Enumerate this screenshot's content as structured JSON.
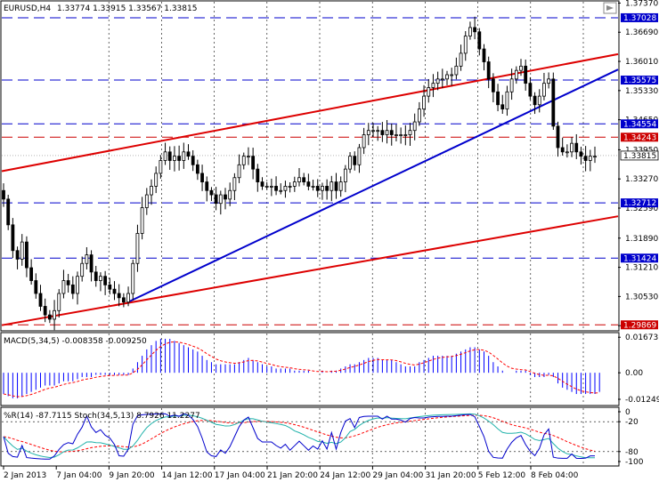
{
  "header": {
    "symbol": "EURUSD,H4",
    "ohlc": "1.33774 1.33915 1.33567 1.33815"
  },
  "colors": {
    "up": "#000000",
    "down": "#000000",
    "grid": "#000000",
    "hline_blue": "#0000cc",
    "hline_red": "#cc0000",
    "trend_red": "#dd0000",
    "trend_blue": "#0000cc",
    "macd_hist": "#0000ff",
    "macd_signal": "#ff0000",
    "wpr": "#0000cc",
    "stoch_main": "#20b2aa",
    "stoch_signal": "#ff0000"
  },
  "chart_data": [
    {
      "type": "candlestick",
      "title": "EURUSD,H4",
      "price_range": [
        1.2975,
        1.374
      ],
      "y_ticks": [
        "1.37370",
        "1.36690",
        "1.36010",
        "1.35330",
        "1.34650",
        "1.33950",
        "1.33270",
        "1.32590",
        "1.31890",
        "1.31210",
        "1.30530",
        "1.29850"
      ],
      "x_ticks": [
        "2 Jan 2013",
        "7 Jan 04:00",
        "9 Jan 20:00",
        "14 Jan 12:00",
        "17 Jan 04:00",
        "21 Jan 20:00",
        "24 Jan 12:00",
        "29 Jan 04:00",
        "31 Jan 20:00",
        "5 Feb 12:00",
        "8 Feb 04:00"
      ],
      "horizontal_levels": [
        {
          "value": 1.37028,
          "label": "1.37028",
          "color": "#0000cc"
        },
        {
          "value": 1.35575,
          "label": "1.35575",
          "color": "#0000cc"
        },
        {
          "value": 1.34554,
          "label": "1.34554",
          "color": "#0000cc"
        },
        {
          "value": 1.34243,
          "label": "1.34243",
          "color": "#cc0000"
        },
        {
          "value": 1.32712,
          "label": "1.32712",
          "color": "#0000cc"
        },
        {
          "value": 1.31424,
          "label": "1.31424",
          "color": "#0000cc"
        },
        {
          "value": 1.29869,
          "label": "1.29869",
          "color": "#cc0000"
        }
      ],
      "current_price": {
        "value": 1.33815,
        "label": "1.33815"
      },
      "trendlines": [
        {
          "color": "#dd0000",
          "from": [
            0,
            1.3345
          ],
          "to": [
            1,
            1.3618
          ]
        },
        {
          "color": "#dd0000",
          "from": [
            0,
            1.2986
          ],
          "to": [
            1,
            1.324
          ]
        },
        {
          "color": "#0000cc",
          "from": [
            0.205,
            1.304
          ],
          "to": [
            1,
            1.3582
          ]
        }
      ],
      "candles_close": [
        1.328,
        1.322,
        1.316,
        1.314,
        1.318,
        1.312,
        1.309,
        1.306,
        1.303,
        1.301,
        1.3,
        1.302,
        1.306,
        1.309,
        1.308,
        1.306,
        1.31,
        1.313,
        1.315,
        1.311,
        1.309,
        1.31,
        1.308,
        1.307,
        1.306,
        1.305,
        1.304,
        1.306,
        1.313,
        1.32,
        1.326,
        1.329,
        1.331,
        1.334,
        1.337,
        1.339,
        1.337,
        1.338,
        1.337,
        1.339,
        1.338,
        1.336,
        1.334,
        1.332,
        1.33,
        1.329,
        1.327,
        1.329,
        1.328,
        1.33,
        1.333,
        1.336,
        1.338,
        1.338,
        1.335,
        1.332,
        1.331,
        1.331,
        1.331,
        1.33,
        1.33,
        1.331,
        1.331,
        1.332,
        1.333,
        1.332,
        1.331,
        1.331,
        1.33,
        1.331,
        1.33,
        1.332,
        1.33,
        1.332,
        1.335,
        1.338,
        1.336,
        1.34,
        1.343,
        1.344,
        1.344,
        1.344,
        1.343,
        1.344,
        1.343,
        1.343,
        1.343,
        1.343,
        1.344,
        1.346,
        1.349,
        1.352,
        1.354,
        1.355,
        1.356,
        1.356,
        1.357,
        1.357,
        1.359,
        1.362,
        1.366,
        1.368,
        1.367,
        1.363,
        1.36,
        1.356,
        1.353,
        1.35,
        1.349,
        1.353,
        1.356,
        1.358,
        1.359,
        1.355,
        1.352,
        1.35,
        1.352,
        1.355,
        1.356,
        1.345,
        1.34,
        1.339,
        1.339,
        1.341,
        1.339,
        1.338,
        1.337,
        1.338,
        1.338
      ],
      "macd": {
        "label": "MACD(5,34,5) -0.008358 -0.009250",
        "y_ticks": [
          "0.016731",
          "0.00",
          "-0.01249"
        ],
        "range": [
          -0.015,
          0.0185
        ],
        "hist": [
          -0.01,
          -0.011,
          -0.012,
          -0.012,
          -0.011,
          -0.01,
          -0.009,
          -0.008,
          -0.007,
          -0.006,
          -0.006,
          -0.006,
          -0.005,
          -0.004,
          -0.004,
          -0.004,
          -0.003,
          -0.002,
          -0.002,
          -0.002,
          -0.001,
          -0.001,
          -0.001,
          -0.001,
          -0.001,
          -0.001,
          -0.001,
          -0.001,
          0.002,
          0.005,
          0.008,
          0.011,
          0.013,
          0.015,
          0.016,
          0.016,
          0.016,
          0.015,
          0.014,
          0.013,
          0.012,
          0.011,
          0.01,
          0.008,
          0.006,
          0.005,
          0.004,
          0.004,
          0.004,
          0.004,
          0.004,
          0.005,
          0.006,
          0.007,
          0.006,
          0.005,
          0.004,
          0.003,
          0.003,
          0.002,
          0.002,
          0.002,
          0.002,
          0.001,
          0.001,
          0.001,
          0.001,
          0.0,
          0.0,
          0.001,
          0.0,
          0.001,
          0.001,
          0.002,
          0.003,
          0.004,
          0.004,
          0.005,
          0.006,
          0.007,
          0.007,
          0.007,
          0.006,
          0.006,
          0.006,
          0.005,
          0.004,
          0.003,
          0.003,
          0.003,
          0.005,
          0.006,
          0.007,
          0.008,
          0.008,
          0.008,
          0.008,
          0.008,
          0.009,
          0.01,
          0.011,
          0.012,
          0.012,
          0.011,
          0.01,
          0.008,
          0.005,
          0.003,
          0.001,
          0.0,
          0.0,
          0.001,
          0.001,
          0.001,
          -0.001,
          -0.002,
          -0.002,
          -0.002,
          -0.001,
          -0.002,
          -0.005,
          -0.007,
          -0.008,
          -0.009,
          -0.01,
          -0.01,
          -0.01,
          -0.01,
          -0.01,
          -0.009
        ]
      },
      "wpr_stoch": {
        "label": "%R(14) -87.7115 Stoch(34,5,13) 8.7926 11.2277",
        "y_ticks": [
          "0",
          "-20",
          "-80",
          "-100"
        ],
        "range": [
          0,
          100
        ],
        "levels": [
          20,
          80
        ]
      }
    }
  ]
}
